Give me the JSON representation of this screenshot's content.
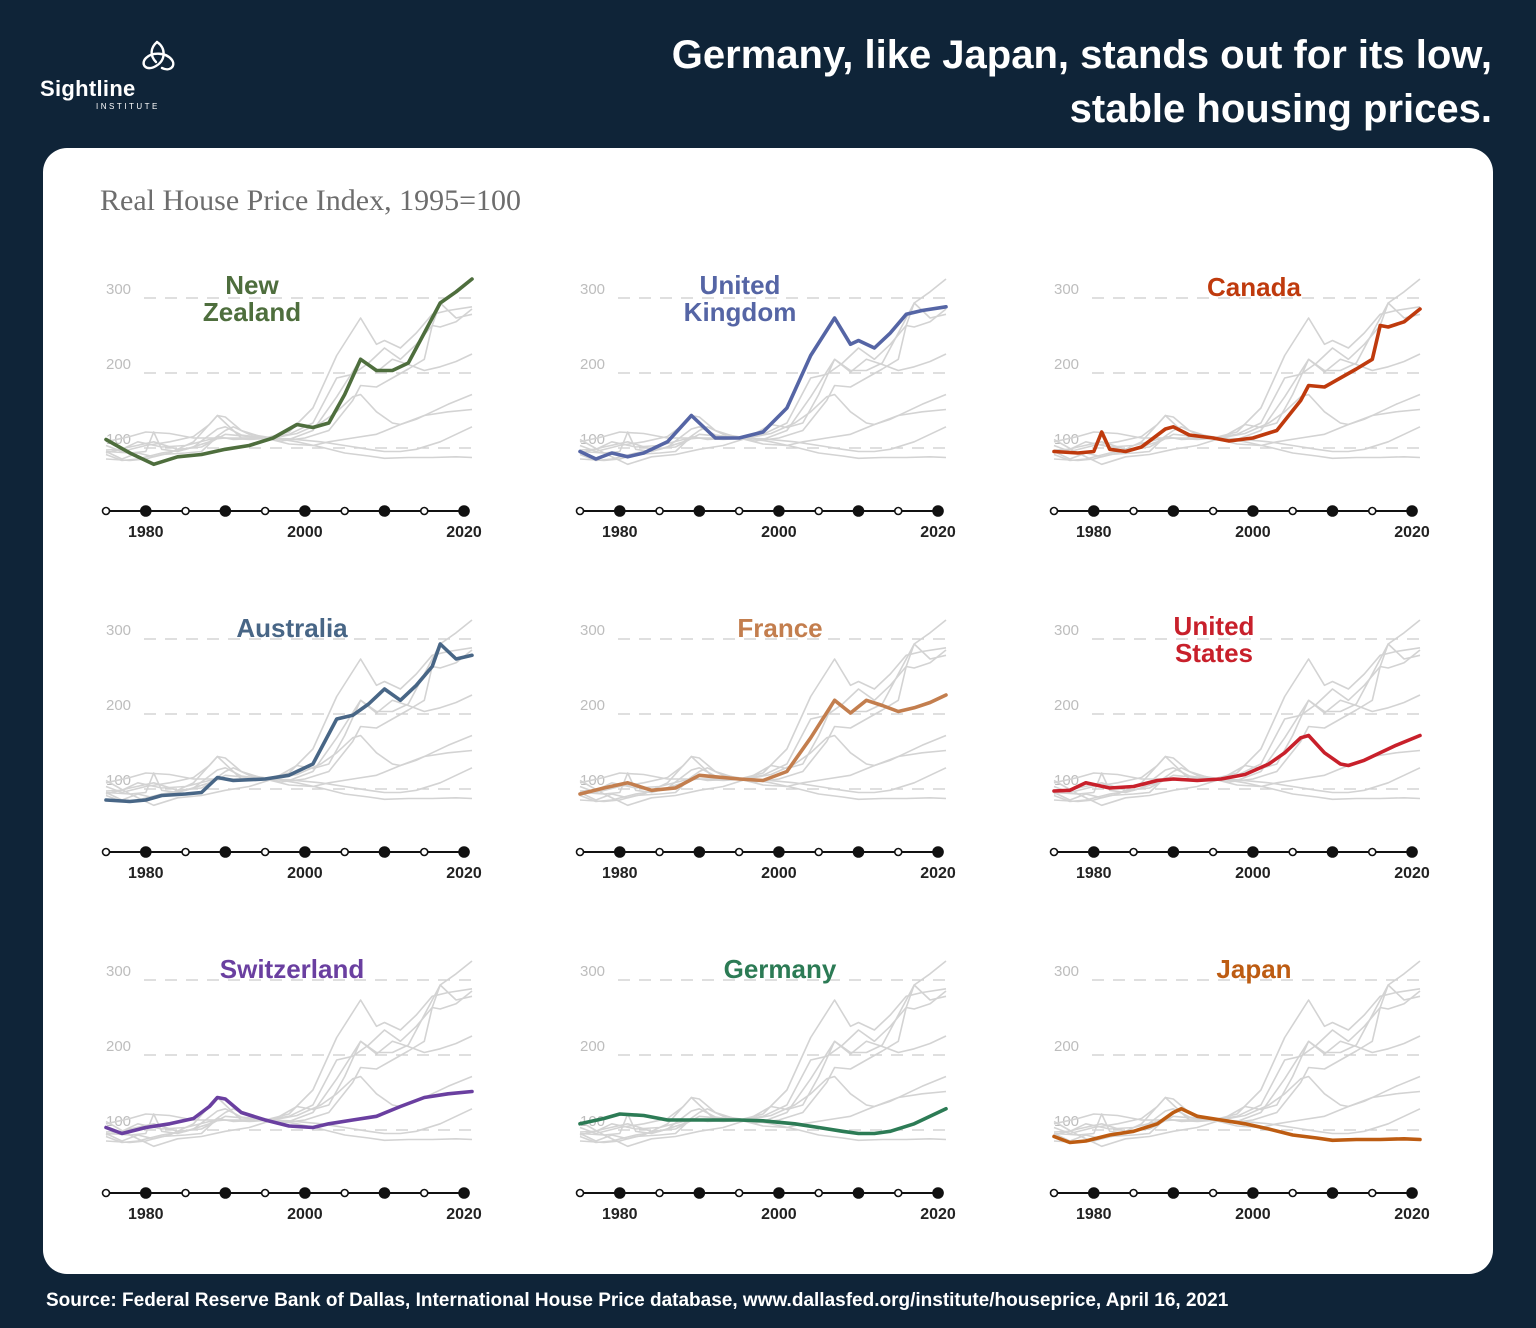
{
  "header": {
    "logo_name": "Sightline",
    "logo_sub": "INSTITUTE",
    "headline_line1": "Germany, like Japan, stands out for its low,",
    "headline_line2": "stable housing prices."
  },
  "subtitle": "Real House Price Index, 1995=100",
  "source": "Source: Federal Reserve Bank of Dallas, International House Price database, www.dallasfed.org/institute/houseprice, April 16, 2021",
  "colors": {
    "background": "#0f2438",
    "card": "#ffffff",
    "context_line": "#d3d3d3",
    "gridline": "#cccccc",
    "axis": "#111111"
  },
  "chart_data": [
    {
      "type": "line",
      "panel": "new-zealand",
      "label_lines": [
        "New",
        "Zealand"
      ],
      "color": "#4e6e3d",
      "x": [
        1975,
        1978,
        1981,
        1984,
        1987,
        1990,
        1993,
        1996,
        1999,
        2001,
        2003,
        2005,
        2007,
        2009,
        2011,
        2013,
        2015,
        2017,
        2019,
        2021
      ],
      "values": [
        98,
        80,
        65,
        75,
        78,
        85,
        90,
        100,
        118,
        114,
        120,
        158,
        205,
        190,
        190,
        200,
        240,
        280,
        295,
        312
      ]
    },
    {
      "type": "line",
      "panel": "united-kingdom",
      "label_lines": [
        "United",
        "Kingdom"
      ],
      "color": "#5565a5",
      "x": [
        1975,
        1977,
        1979,
        1981,
        1983,
        1986,
        1989,
        1992,
        1995,
        1998,
        2001,
        2004,
        2007,
        2009,
        2010,
        2012,
        2014,
        2016,
        2018,
        2021
      ],
      "values": [
        82,
        72,
        80,
        75,
        80,
        95,
        130,
        100,
        100,
        108,
        140,
        210,
        260,
        225,
        230,
        220,
        240,
        265,
        270,
        275
      ]
    },
    {
      "type": "line",
      "panel": "canada",
      "label_lines": [
        "Canada"
      ],
      "color": "#bf3a0d",
      "x": [
        1975,
        1978,
        1980,
        1981,
        1982,
        1984,
        1986,
        1989,
        1990,
        1992,
        1995,
        1997,
        2000,
        2003,
        2006,
        2007,
        2009,
        2011,
        2013,
        2015,
        2016,
        2017,
        2019,
        2021
      ],
      "values": [
        82,
        80,
        82,
        108,
        85,
        82,
        88,
        112,
        115,
        104,
        100,
        96,
        100,
        110,
        150,
        170,
        168,
        180,
        192,
        205,
        250,
        248,
        255,
        272
      ]
    },
    {
      "type": "line",
      "panel": "australia",
      "label_lines": [
        "Australia"
      ],
      "color": "#486686",
      "x": [
        1975,
        1978,
        1980,
        1982,
        1985,
        1987,
        1989,
        1991,
        1995,
        1998,
        2001,
        2004,
        2006,
        2008,
        2010,
        2012,
        2014,
        2016,
        2017,
        2019,
        2021
      ],
      "values": [
        72,
        70,
        72,
        78,
        80,
        82,
        102,
        98,
        100,
        105,
        120,
        180,
        185,
        200,
        220,
        205,
        225,
        250,
        280,
        260,
        265
      ]
    },
    {
      "type": "line",
      "panel": "france",
      "label_lines": [
        "France"
      ],
      "color": "#c37e4e",
      "x": [
        1975,
        1978,
        1981,
        1984,
        1987,
        1990,
        1992,
        1995,
        1998,
        2001,
        2004,
        2007,
        2009,
        2011,
        2013,
        2015,
        2017,
        2019,
        2021
      ],
      "values": [
        80,
        88,
        95,
        85,
        88,
        105,
        103,
        100,
        98,
        110,
        155,
        205,
        188,
        205,
        198,
        190,
        195,
        202,
        212
      ]
    },
    {
      "type": "line",
      "panel": "united-states",
      "label_lines": [
        "United",
        "States"
      ],
      "color": "#c8202b",
      "x": [
        1975,
        1977,
        1979,
        1982,
        1985,
        1988,
        1990,
        1993,
        1996,
        1999,
        2002,
        2004,
        2006,
        2007,
        2009,
        2011,
        2012,
        2014,
        2016,
        2018,
        2021
      ],
      "values": [
        84,
        85,
        95,
        88,
        90,
        98,
        100,
        98,
        100,
        106,
        120,
        135,
        155,
        158,
        135,
        120,
        118,
        125,
        135,
        145,
        158
      ]
    },
    {
      "type": "line",
      "panel": "switzerland",
      "label_lines": [
        "Switzerland"
      ],
      "color": "#6a3fa0",
      "x": [
        1975,
        1977,
        1980,
        1983,
        1986,
        1988,
        1989,
        1990,
        1992,
        1995,
        1998,
        2001,
        2003,
        2006,
        2009,
        2012,
        2015,
        2018,
        2021
      ],
      "values": [
        90,
        82,
        90,
        95,
        102,
        118,
        130,
        128,
        110,
        100,
        92,
        90,
        95,
        100,
        105,
        118,
        130,
        135,
        138
      ]
    },
    {
      "type": "line",
      "panel": "germany",
      "label_lines": [
        "Germany"
      ],
      "color": "#2c7b55",
      "x": [
        1975,
        1978,
        1980,
        1983,
        1986,
        1990,
        1995,
        1998,
        2002,
        2005,
        2008,
        2010,
        2012,
        2014,
        2017,
        2019,
        2021
      ],
      "values": [
        95,
        102,
        108,
        106,
        100,
        100,
        100,
        99,
        95,
        90,
        85,
        82,
        82,
        85,
        95,
        105,
        115
      ]
    },
    {
      "type": "line",
      "panel": "japan",
      "label_lines": [
        "Japan"
      ],
      "color": "#bd5c12",
      "x": [
        1975,
        1977,
        1979,
        1982,
        1985,
        1988,
        1990,
        1991,
        1993,
        1996,
        1999,
        2002,
        2005,
        2008,
        2010,
        2013,
        2016,
        2019,
        2021
      ],
      "values": [
        78,
        70,
        72,
        80,
        85,
        95,
        110,
        115,
        105,
        100,
        95,
        88,
        80,
        76,
        73,
        74,
        74,
        75,
        74
      ]
    }
  ],
  "axis": {
    "x_range": [
      1975,
      2021
    ],
    "y_range": [
      60,
      320
    ],
    "y_ticks": [
      100,
      200,
      300
    ],
    "x_tick_labels": [
      1980,
      2000,
      2020
    ],
    "x_markers": [
      1975,
      1980,
      1985,
      1990,
      1995,
      2000,
      2005,
      2010,
      2015,
      2020
    ]
  }
}
